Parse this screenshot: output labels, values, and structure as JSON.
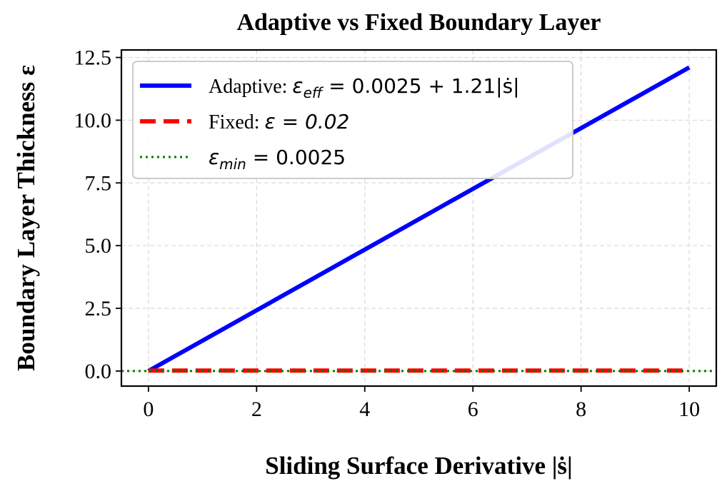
{
  "chart_data": {
    "type": "line",
    "title": "Adaptive vs Fixed Boundary Layer",
    "xlabel": "Sliding Surface Derivative |ṡ|",
    "ylabel": "Boundary Layer Thickness ε",
    "xlim": [
      -0.5,
      10.5
    ],
    "ylim": [
      -0.6,
      12.8
    ],
    "xticks": [
      0,
      2,
      4,
      6,
      8,
      10
    ],
    "xtick_labels": [
      "0",
      "2",
      "4",
      "6",
      "8",
      "10"
    ],
    "yticks": [
      0.0,
      2.5,
      5.0,
      7.5,
      10.0,
      12.5
    ],
    "ytick_labels": [
      "0.0",
      "2.5",
      "5.0",
      "7.5",
      "10.0",
      "12.5"
    ],
    "grid": true,
    "legend_position": "top-left",
    "series": [
      {
        "name": "Adaptive: ε_eff = 0.0025 + 1.21|ṡ|",
        "legend_text": "Adaptive: ",
        "legend_math": "ε",
        "legend_sub": "eff",
        "legend_rest": " = 0.0025 + 1.21|ṡ|",
        "color": "#0000ff",
        "style": "solid",
        "x": [
          0,
          10
        ],
        "y": [
          0.0025,
          12.1025
        ]
      },
      {
        "name": "Fixed: ε = 0.02",
        "legend_text": "Fixed: ",
        "legend_math": "ε = 0.02",
        "legend_sub": "",
        "legend_rest": "",
        "color": "#ff0000",
        "style": "dashed",
        "x": [
          0,
          10
        ],
        "y": [
          0.02,
          0.02
        ]
      },
      {
        "name": "ε_min = 0.0025",
        "legend_text": "",
        "legend_math": "ε",
        "legend_sub": "min",
        "legend_rest": " = 0.0025",
        "color": "#008000",
        "style": "dotted",
        "x": [
          -0.5,
          10.5
        ],
        "y": [
          0.0025,
          0.0025
        ]
      }
    ]
  }
}
